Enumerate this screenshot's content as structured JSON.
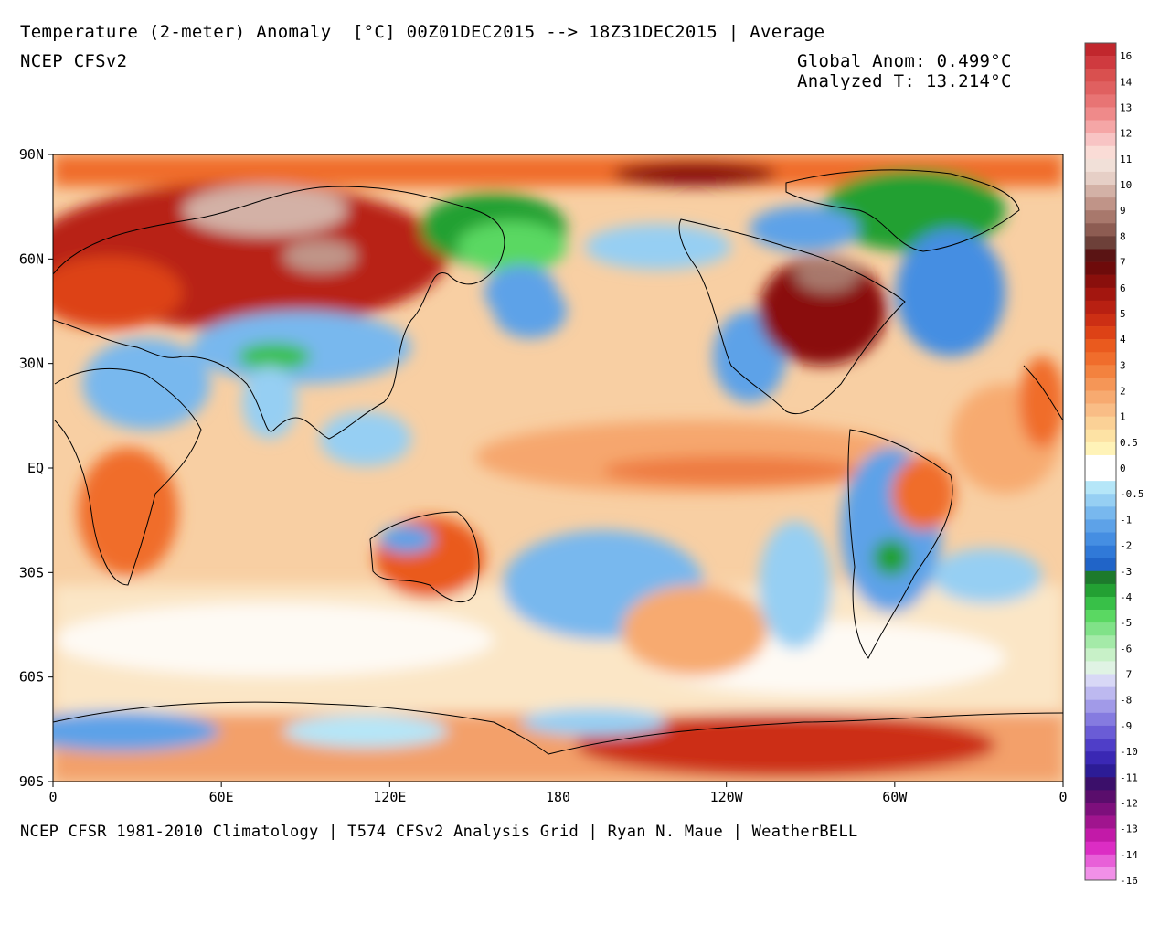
{
  "header": {
    "title": "Temperature (2-meter) Anomaly  [°C] 00Z01DEC2015 --> 18Z31DEC2015 | Average",
    "model": "NCEP CFSv2",
    "global_anom": "Global Anom: 0.499°C",
    "analyzed_t": "Analyzed T: 13.214°C"
  },
  "footer": {
    "credit": "NCEP CFSR 1981-2010 Climatology | T574 CFSv2 Analysis Grid | Ryan N. Maue | WeatherBELL"
  },
  "map": {
    "lat_ticks": [
      "90N",
      "60N",
      "30N",
      "EQ",
      "30S",
      "60S",
      "90S"
    ],
    "lon_ticks": [
      "0",
      "60E",
      "120E",
      "180",
      "120W",
      "60W",
      "0"
    ],
    "colors": {
      "ocean_warm": "#f6c49a",
      "land_hot": "#b32812",
      "cold_blue": "#3a8fe0",
      "cold_green": "#2aa83a",
      "border": "#000000"
    }
  },
  "colorbar": {
    "levels": [
      {
        "color": "#c1272d",
        "label": "16"
      },
      {
        "color": "#cf3a3f",
        "label": ""
      },
      {
        "color": "#d9504f",
        "label": "14"
      },
      {
        "color": "#e06060",
        "label": ""
      },
      {
        "color": "#e87474",
        "label": "13"
      },
      {
        "color": "#ef8a8a",
        "label": ""
      },
      {
        "color": "#f5a6a6",
        "label": "12"
      },
      {
        "color": "#f8c4c4",
        "label": ""
      },
      {
        "color": "#fadcd6",
        "label": "11"
      },
      {
        "color": "#f1e0d8",
        "label": ""
      },
      {
        "color": "#e6cfc6",
        "label": "10"
      },
      {
        "color": "#d3b1a6",
        "label": ""
      },
      {
        "color": "#c09488",
        "label": "9"
      },
      {
        "color": "#a8786c",
        "label": ""
      },
      {
        "color": "#8d5c52",
        "label": "8"
      },
      {
        "color": "#6d4039",
        "label": ""
      },
      {
        "color": "#5a1414",
        "label": "7"
      },
      {
        "color": "#6e0b0b",
        "label": ""
      },
      {
        "color": "#8a0f0c",
        "label": "6"
      },
      {
        "color": "#a3160f",
        "label": ""
      },
      {
        "color": "#b82012",
        "label": "5"
      },
      {
        "color": "#cc2f14",
        "label": ""
      },
      {
        "color": "#dd4216",
        "label": "4"
      },
      {
        "color": "#ea5a1e",
        "label": ""
      },
      {
        "color": "#f06d2c",
        "label": "3"
      },
      {
        "color": "#f3823f",
        "label": ""
      },
      {
        "color": "#f59657",
        "label": "2"
      },
      {
        "color": "#f7aa70",
        "label": ""
      },
      {
        "color": "#f9bd86",
        "label": "1"
      },
      {
        "color": "#fbd196",
        "label": ""
      },
      {
        "color": "#fde2a4",
        "label": "0.5"
      },
      {
        "color": "#fff3b8",
        "label": ""
      },
      {
        "color": "#ffffff",
        "label": "0"
      },
      {
        "color": "#ffffff",
        "label": ""
      },
      {
        "color": "#b5e6f8",
        "label": "-0.5"
      },
      {
        "color": "#96cff3",
        "label": ""
      },
      {
        "color": "#78b8ee",
        "label": "-1"
      },
      {
        "color": "#5da2e8",
        "label": ""
      },
      {
        "color": "#458ee2",
        "label": "-2"
      },
      {
        "color": "#3079d8",
        "label": ""
      },
      {
        "color": "#2064c8",
        "label": "-3"
      },
      {
        "color": "#1d7a2c",
        "label": ""
      },
      {
        "color": "#23a033",
        "label": "-4"
      },
      {
        "color": "#38c048",
        "label": ""
      },
      {
        "color": "#5ad862",
        "label": "-5"
      },
      {
        "color": "#80e288",
        "label": ""
      },
      {
        "color": "#a4eaa8",
        "label": "-6"
      },
      {
        "color": "#c8f1c8",
        "label": ""
      },
      {
        "color": "#e0f3e4",
        "label": "-7"
      },
      {
        "color": "#d8d8f6",
        "label": ""
      },
      {
        "color": "#bdb9f0",
        "label": "-8"
      },
      {
        "color": "#a19ae8",
        "label": ""
      },
      {
        "color": "#857be0",
        "label": "-9"
      },
      {
        "color": "#6a5cd6",
        "label": ""
      },
      {
        "color": "#4f3ec8",
        "label": "-10"
      },
      {
        "color": "#3a28b4",
        "label": ""
      },
      {
        "color": "#2c1c96",
        "label": "-11"
      },
      {
        "color": "#3b0f6a",
        "label": ""
      },
      {
        "color": "#5a0d6c",
        "label": "-12"
      },
      {
        "color": "#7d0f7c",
        "label": ""
      },
      {
        "color": "#a0148e",
        "label": "-13"
      },
      {
        "color": "#c21aa8",
        "label": ""
      },
      {
        "color": "#dc2dc4",
        "label": "-14"
      },
      {
        "color": "#e860d8",
        "label": ""
      },
      {
        "color": "#f190e8",
        "label": "-16"
      }
    ]
  }
}
